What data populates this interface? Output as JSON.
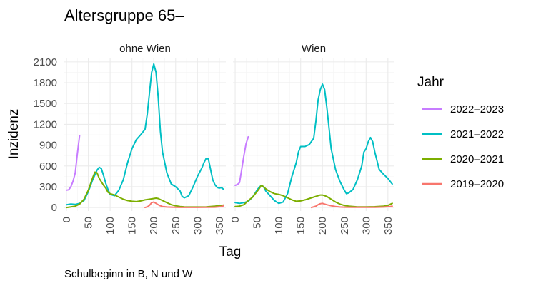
{
  "chart_data": {
    "type": "line",
    "title": "Altersgruppe 65–",
    "xlabel": "Tag",
    "ylabel": "Inzidenz",
    "caption": "Schulbeginn in B, N und W",
    "xlim": [
      -5,
      365
    ],
    "ylim": [
      -50,
      2150
    ],
    "x_ticks": [
      "0",
      "50",
      "100",
      "150",
      "200",
      "250",
      "300",
      "350"
    ],
    "y_ticks": [
      "0",
      "300",
      "600",
      "900",
      "1200",
      "1500",
      "1800",
      "2100"
    ],
    "grid": true,
    "legend": {
      "title": "Jahr",
      "position": "right",
      "entries": [
        "2022–2023",
        "2021–2022",
        "2020–2021",
        "2019–2020"
      ]
    },
    "colors": {
      "2022–2023": "#C77CFF",
      "2021–2022": "#00BFC4",
      "2020–2021": "#7CAE00",
      "2019–2020": "#F8766D"
    },
    "panels": [
      {
        "label": "ohne Wien",
        "series": [
          {
            "name": "2022–2023",
            "points": [
              [
                0,
                250
              ],
              [
                5,
                255
              ],
              [
                10,
                300
              ],
              [
                15,
                380
              ],
              [
                20,
                500
              ],
              [
                25,
                780
              ],
              [
                30,
                1040
              ]
            ]
          },
          {
            "name": "2021–2022",
            "points": [
              [
                0,
                40
              ],
              [
                10,
                50
              ],
              [
                20,
                45
              ],
              [
                30,
                60
              ],
              [
                40,
                100
              ],
              [
                50,
                230
              ],
              [
                60,
                400
              ],
              [
                70,
                540
              ],
              [
                75,
                580
              ],
              [
                80,
                560
              ],
              [
                85,
                460
              ],
              [
                90,
                350
              ],
              [
                95,
                260
              ],
              [
                100,
                190
              ],
              [
                110,
                170
              ],
              [
                120,
                250
              ],
              [
                130,
                400
              ],
              [
                140,
                650
              ],
              [
                150,
                850
              ],
              [
                160,
                980
              ],
              [
                170,
                1050
              ],
              [
                180,
                1130
              ],
              [
                185,
                1350
              ],
              [
                190,
                1650
              ],
              [
                195,
                1950
              ],
              [
                200,
                2070
              ],
              [
                205,
                1950
              ],
              [
                210,
                1600
              ],
              [
                215,
                1100
              ],
              [
                220,
                800
              ],
              [
                230,
                500
              ],
              [
                240,
                340
              ],
              [
                250,
                300
              ],
              [
                260,
                240
              ],
              [
                265,
                160
              ],
              [
                270,
                140
              ],
              [
                280,
                170
              ],
              [
                290,
                300
              ],
              [
                300,
                450
              ],
              [
                310,
                570
              ],
              [
                315,
                650
              ],
              [
                320,
                710
              ],
              [
                325,
                700
              ],
              [
                330,
                550
              ],
              [
                335,
                400
              ],
              [
                340,
                330
              ],
              [
                345,
                290
              ],
              [
                350,
                280
              ],
              [
                355,
                290
              ],
              [
                360,
                260
              ]
            ]
          },
          {
            "name": "2020–2021",
            "points": [
              [
                0,
                0
              ],
              [
                10,
                10
              ],
              [
                20,
                20
              ],
              [
                30,
                50
              ],
              [
                40,
                120
              ],
              [
                50,
                250
              ],
              [
                60,
                430
              ],
              [
                65,
                510
              ],
              [
                70,
                500
              ],
              [
                75,
                420
              ],
              [
                80,
                370
              ],
              [
                85,
                320
              ],
              [
                90,
                280
              ],
              [
                95,
                220
              ],
              [
                100,
                200
              ],
              [
                110,
                180
              ],
              [
                120,
                150
              ],
              [
                130,
                120
              ],
              [
                140,
                100
              ],
              [
                150,
                90
              ],
              [
                160,
                85
              ],
              [
                170,
                95
              ],
              [
                180,
                110
              ],
              [
                190,
                120
              ],
              [
                200,
                130
              ],
              [
                205,
                135
              ],
              [
                210,
                130
              ],
              [
                220,
                100
              ],
              [
                230,
                70
              ],
              [
                240,
                40
              ],
              [
                250,
                25
              ],
              [
                260,
                15
              ],
              [
                270,
                10
              ],
              [
                280,
                8
              ],
              [
                300,
                8
              ],
              [
                320,
                10
              ],
              [
                340,
                20
              ],
              [
                355,
                30
              ],
              [
                360,
                35
              ]
            ]
          },
          {
            "name": "2019–2020",
            "points": [
              [
                180,
                0
              ],
              [
                185,
                10
              ],
              [
                190,
                30
              ],
              [
                195,
                70
              ],
              [
                200,
                80
              ],
              [
                205,
                60
              ],
              [
                210,
                40
              ],
              [
                215,
                25
              ],
              [
                220,
                15
              ],
              [
                230,
                8
              ],
              [
                240,
                5
              ],
              [
                250,
                3
              ],
              [
                260,
                2
              ],
              [
                280,
                2
              ],
              [
                300,
                2
              ],
              [
                320,
                3
              ],
              [
                340,
                6
              ],
              [
                355,
                15
              ],
              [
                360,
                25
              ]
            ]
          }
        ]
      },
      {
        "label": "Wien",
        "series": [
          {
            "name": "2022–2023",
            "points": [
              [
                0,
                320
              ],
              [
                5,
                330
              ],
              [
                10,
                360
              ],
              [
                15,
                550
              ],
              [
                20,
                750
              ],
              [
                25,
                920
              ],
              [
                30,
                1020
              ]
            ]
          },
          {
            "name": "2021–2022",
            "points": [
              [
                0,
                70
              ],
              [
                10,
                60
              ],
              [
                20,
                70
              ],
              [
                30,
                90
              ],
              [
                40,
                150
              ],
              [
                50,
                250
              ],
              [
                55,
                290
              ],
              [
                60,
                320
              ],
              [
                65,
                300
              ],
              [
                70,
                240
              ],
              [
                80,
                170
              ],
              [
                90,
                100
              ],
              [
                100,
                60
              ],
              [
                110,
                80
              ],
              [
                120,
                200
              ],
              [
                130,
                450
              ],
              [
                140,
                650
              ],
              [
                145,
                800
              ],
              [
                150,
                880
              ],
              [
                160,
                880
              ],
              [
                170,
                910
              ],
              [
                180,
                1000
              ],
              [
                185,
                1250
              ],
              [
                190,
                1550
              ],
              [
                195,
                1700
              ],
              [
                200,
                1780
              ],
              [
                205,
                1700
              ],
              [
                210,
                1450
              ],
              [
                215,
                1150
              ],
              [
                220,
                850
              ],
              [
                230,
                550
              ],
              [
                240,
                380
              ],
              [
                250,
                250
              ],
              [
                255,
                200
              ],
              [
                260,
                210
              ],
              [
                270,
                260
              ],
              [
                280,
                400
              ],
              [
                290,
                600
              ],
              [
                295,
                800
              ],
              [
                300,
                850
              ],
              [
                305,
                950
              ],
              [
                310,
                1010
              ],
              [
                315,
                950
              ],
              [
                320,
                800
              ],
              [
                330,
                550
              ],
              [
                340,
                480
              ],
              [
                350,
                420
              ],
              [
                360,
                340
              ]
            ]
          },
          {
            "name": "2020–2021",
            "points": [
              [
                0,
                15
              ],
              [
                10,
                20
              ],
              [
                20,
                40
              ],
              [
                30,
                100
              ],
              [
                40,
                150
              ],
              [
                50,
                230
              ],
              [
                55,
                270
              ],
              [
                60,
                320
              ],
              [
                65,
                300
              ],
              [
                70,
                270
              ],
              [
                80,
                230
              ],
              [
                90,
                200
              ],
              [
                100,
                190
              ],
              [
                110,
                170
              ],
              [
                120,
                140
              ],
              [
                130,
                110
              ],
              [
                140,
                90
              ],
              [
                150,
                95
              ],
              [
                160,
                110
              ],
              [
                170,
                130
              ],
              [
                180,
                150
              ],
              [
                190,
                170
              ],
              [
                195,
                180
              ],
              [
                200,
                180
              ],
              [
                210,
                160
              ],
              [
                220,
                120
              ],
              [
                230,
                80
              ],
              [
                240,
                50
              ],
              [
                250,
                30
              ],
              [
                260,
                20
              ],
              [
                270,
                15
              ],
              [
                280,
                10
              ],
              [
                300,
                10
              ],
              [
                320,
                12
              ],
              [
                340,
                20
              ],
              [
                350,
                30
              ],
              [
                360,
                60
              ]
            ]
          },
          {
            "name": "2019–2020",
            "points": [
              [
                175,
                0
              ],
              [
                185,
                20
              ],
              [
                190,
                40
              ],
              [
                195,
                55
              ],
              [
                200,
                60
              ],
              [
                205,
                50
              ],
              [
                210,
                40
              ],
              [
                220,
                25
              ],
              [
                230,
                15
              ],
              [
                240,
                8
              ],
              [
                250,
                5
              ],
              [
                270,
                3
              ],
              [
                300,
                3
              ],
              [
                320,
                4
              ],
              [
                340,
                8
              ],
              [
                355,
                15
              ],
              [
                360,
                20
              ]
            ]
          }
        ]
      }
    ]
  }
}
